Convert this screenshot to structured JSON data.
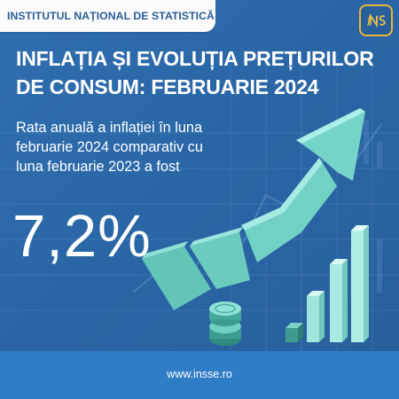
{
  "header": {
    "institution": "INSTITUTUL NAȚIONAL DE STATISTICĂ"
  },
  "logo": {
    "text": "INS"
  },
  "title": {
    "line1": "INFLAȚIA ȘI EVOLUȚIA PREȚURILOR",
    "line2": "DE CONSUM: FEBRUARIE 2024"
  },
  "description": {
    "line1": "Rata anuală a inflației în luna",
    "line2": "februarie 2024 comparativ cu",
    "line3": "luna februarie 2023 a fost"
  },
  "highlight_value": "7,2%",
  "footer": {
    "url": "www.insse.ro"
  },
  "colors": {
    "background": "#2a66a6",
    "tag_text": "#2b5d96",
    "logo_border": "#e9b43a",
    "arrow": "#6fd1c5",
    "footer": "#2f7dc7"
  },
  "icons": [
    "logo-icon",
    "growth-arrow-icon",
    "bar-chart-icon",
    "coin-stack-icon"
  ]
}
